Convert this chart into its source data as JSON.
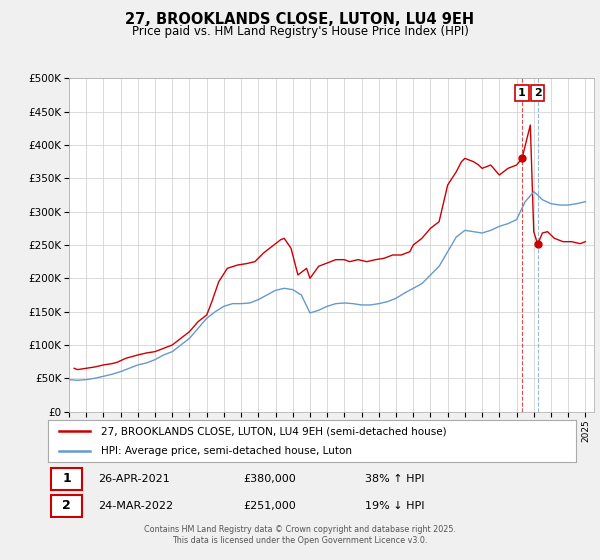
{
  "title": "27, BROOKLANDS CLOSE, LUTON, LU4 9EH",
  "subtitle": "Price paid vs. HM Land Registry's House Price Index (HPI)",
  "legend_line1": "27, BROOKLANDS CLOSE, LUTON, LU4 9EH (semi-detached house)",
  "legend_line2": "HPI: Average price, semi-detached house, Luton",
  "footer": "Contains HM Land Registry data © Crown copyright and database right 2025.\nThis data is licensed under the Open Government Licence v3.0.",
  "annotation1_date": "26-APR-2021",
  "annotation1_price": "£380,000",
  "annotation1_pct": "38% ↑ HPI",
  "annotation2_date": "24-MAR-2022",
  "annotation2_price": "£251,000",
  "annotation2_pct": "19% ↓ HPI",
  "vline1_x": 2021.32,
  "vline2_x": 2022.23,
  "red_color": "#cc0000",
  "blue_color": "#6699cc",
  "background_color": "#f0f0f0",
  "plot_bg_color": "#ffffff",
  "grid_color": "#cccccc",
  "ylim": [
    0,
    500000
  ],
  "xlim": [
    1995,
    2025.5
  ],
  "red_x": [
    1995.3,
    1995.5,
    1996.0,
    1996.5,
    1997.0,
    1997.5,
    1997.8,
    1998.3,
    1999.0,
    1999.5,
    2000.0,
    2000.5,
    2001.0,
    2001.5,
    2002.0,
    2002.5,
    2003.0,
    2003.3,
    2003.7,
    2004.2,
    2004.8,
    2005.3,
    2005.8,
    2006.3,
    2006.8,
    2007.3,
    2007.5,
    2007.9,
    2008.3,
    2008.8,
    2009.0,
    2009.5,
    2010.2,
    2010.5,
    2011.0,
    2011.3,
    2011.8,
    2012.3,
    2012.8,
    2013.3,
    2013.8,
    2014.3,
    2014.8,
    2015.0,
    2015.5,
    2016.0,
    2016.5,
    2017.0,
    2017.5,
    2017.8,
    2018.0,
    2018.5,
    2018.8,
    2019.0,
    2019.5,
    2020.0,
    2020.5,
    2021.0,
    2021.32,
    2021.8,
    2022.0,
    2022.23,
    2022.5,
    2022.8,
    2023.2,
    2023.7,
    2024.2,
    2024.7,
    2025.0
  ],
  "red_y": [
    65000,
    63000,
    65000,
    67000,
    70000,
    72000,
    74000,
    80000,
    85000,
    88000,
    90000,
    95000,
    100000,
    110000,
    120000,
    135000,
    145000,
    165000,
    195000,
    215000,
    220000,
    222000,
    225000,
    238000,
    248000,
    258000,
    260000,
    245000,
    205000,
    215000,
    200000,
    218000,
    225000,
    228000,
    228000,
    225000,
    228000,
    225000,
    228000,
    230000,
    235000,
    235000,
    240000,
    250000,
    260000,
    275000,
    285000,
    340000,
    360000,
    375000,
    380000,
    375000,
    370000,
    365000,
    370000,
    355000,
    365000,
    370000,
    380000,
    430000,
    270000,
    251000,
    268000,
    270000,
    260000,
    255000,
    255000,
    252000,
    255000
  ],
  "blue_x": [
    1995.0,
    1995.5,
    1996.0,
    1996.5,
    1997.0,
    1997.5,
    1998.0,
    1998.5,
    1999.0,
    1999.5,
    2000.0,
    2000.5,
    2001.0,
    2001.5,
    2002.0,
    2002.5,
    2003.0,
    2003.5,
    2004.0,
    2004.5,
    2005.0,
    2005.5,
    2006.0,
    2006.5,
    2007.0,
    2007.5,
    2008.0,
    2008.5,
    2009.0,
    2009.5,
    2010.0,
    2010.5,
    2011.0,
    2011.5,
    2012.0,
    2012.5,
    2013.0,
    2013.5,
    2014.0,
    2014.5,
    2015.0,
    2015.5,
    2016.0,
    2016.5,
    2017.0,
    2017.5,
    2018.0,
    2018.5,
    2019.0,
    2019.5,
    2020.0,
    2020.5,
    2021.0,
    2021.5,
    2022.0,
    2022.23,
    2022.5,
    2023.0,
    2023.5,
    2024.0,
    2024.5,
    2025.0
  ],
  "blue_y": [
    48000,
    47000,
    48000,
    50000,
    53000,
    56000,
    60000,
    65000,
    70000,
    73000,
    78000,
    85000,
    90000,
    100000,
    110000,
    125000,
    140000,
    150000,
    158000,
    162000,
    162000,
    163000,
    168000,
    175000,
    182000,
    185000,
    183000,
    175000,
    148000,
    152000,
    158000,
    162000,
    163000,
    162000,
    160000,
    160000,
    162000,
    165000,
    170000,
    178000,
    185000,
    192000,
    205000,
    218000,
    240000,
    262000,
    272000,
    270000,
    268000,
    272000,
    278000,
    282000,
    288000,
    315000,
    330000,
    325000,
    318000,
    312000,
    310000,
    310000,
    312000,
    315000
  ],
  "yticks": [
    0,
    50000,
    100000,
    150000,
    200000,
    250000,
    300000,
    350000,
    400000,
    450000,
    500000
  ],
  "ylabels": [
    "£0",
    "£50K",
    "£100K",
    "£150K",
    "£200K",
    "£250K",
    "£300K",
    "£350K",
    "£400K",
    "£450K",
    "£500K"
  ]
}
